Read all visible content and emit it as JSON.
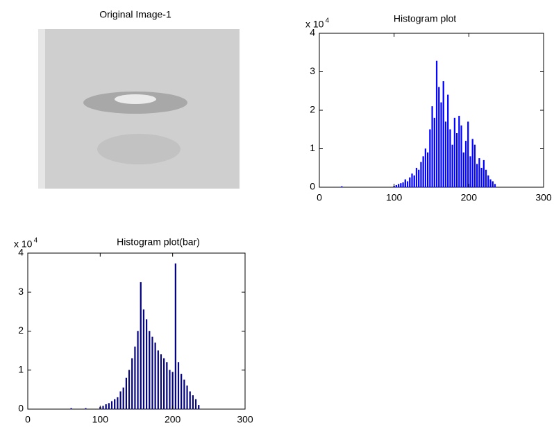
{
  "chart_data": [
    {
      "type": "image",
      "title": "Original Image-1"
    },
    {
      "type": "bar",
      "title": "Histogram plot",
      "multiplier": "x 10",
      "multiplier_exponent": "4",
      "color": "#0000ff",
      "x": [
        30,
        100,
        103,
        106,
        109,
        112,
        115,
        118,
        121,
        124,
        127,
        130,
        133,
        136,
        139,
        142,
        145,
        148,
        151,
        154,
        157,
        160,
        163,
        166,
        169,
        172,
        175,
        178,
        181,
        184,
        187,
        190,
        193,
        196,
        199,
        202,
        205,
        208,
        211,
        214,
        217,
        220,
        223,
        226,
        229,
        232,
        235
      ],
      "values": [
        0.02,
        0.03,
        0.05,
        0.08,
        0.1,
        0.12,
        0.2,
        0.15,
        0.25,
        0.35,
        0.3,
        0.5,
        0.45,
        0.65,
        0.8,
        1.0,
        0.9,
        1.5,
        2.1,
        1.8,
        3.28,
        2.6,
        2.2,
        2.75,
        1.7,
        2.4,
        1.5,
        1.1,
        1.8,
        1.4,
        1.85,
        1.6,
        0.9,
        1.2,
        1.7,
        0.8,
        1.25,
        1.1,
        0.6,
        0.75,
        0.5,
        0.7,
        0.45,
        0.3,
        0.2,
        0.15,
        0.08
      ],
      "xlim": [
        0,
        300
      ],
      "xticks": [
        0,
        100,
        200,
        300
      ],
      "ylim": [
        0,
        4
      ],
      "yticks": [
        0,
        1,
        2,
        3,
        4
      ]
    },
    {
      "type": "bar",
      "title": "Histogram plot(bar)",
      "multiplier": "x 10",
      "multiplier_exponent": "4",
      "color": "#000080",
      "x": [
        60,
        80,
        100,
        104,
        108,
        112,
        116,
        120,
        124,
        128,
        132,
        136,
        140,
        144,
        148,
        152,
        156,
        160,
        164,
        168,
        172,
        176,
        180,
        184,
        188,
        192,
        196,
        200,
        204,
        208,
        212,
        216,
        220,
        224,
        228,
        232,
        236
      ],
      "values": [
        0.02,
        0.02,
        0.05,
        0.08,
        0.12,
        0.15,
        0.2,
        0.25,
        0.3,
        0.45,
        0.55,
        0.8,
        1.0,
        1.3,
        1.6,
        2.0,
        3.25,
        2.55,
        2.3,
        2.0,
        1.85,
        1.7,
        1.5,
        1.4,
        1.3,
        1.2,
        1.0,
        0.95,
        3.73,
        1.2,
        0.9,
        0.75,
        0.6,
        0.45,
        0.35,
        0.25,
        0.1
      ],
      "xlim": [
        0,
        300
      ],
      "xticks": [
        0,
        100,
        200,
        300
      ],
      "ylim": [
        0,
        4
      ],
      "yticks": [
        0,
        1,
        2,
        3,
        4
      ]
    }
  ]
}
